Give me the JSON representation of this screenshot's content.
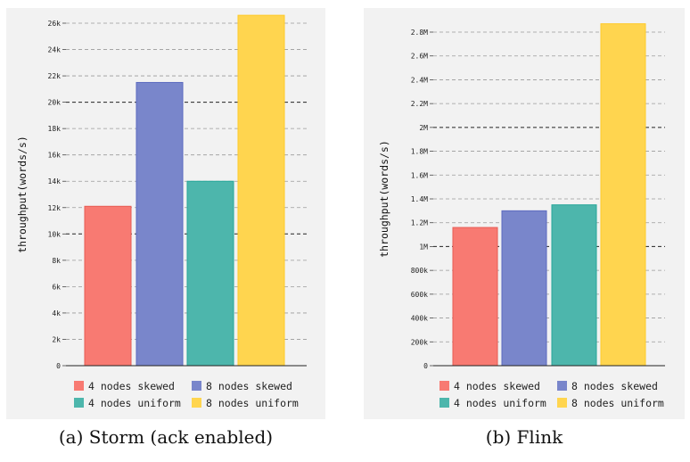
{
  "figure": {
    "captions": [
      "(a) Storm (ack enabled)",
      "(b) Flink"
    ]
  },
  "chart_data": [
    {
      "type": "bar",
      "title": "",
      "xlabel": "",
      "ylabel": "throughput(words/s)",
      "ylim": [
        0,
        26000
      ],
      "yticks": [
        0,
        2000,
        4000,
        6000,
        8000,
        10000,
        12000,
        14000,
        16000,
        18000,
        20000,
        22000,
        24000,
        26000
      ],
      "ytick_labels": [
        "0",
        "2k",
        "4k",
        "6k",
        "8k",
        "10k",
        "12k",
        "14k",
        "16k",
        "18k",
        "20k",
        "22k",
        "24k",
        "26k"
      ],
      "dark_gridlines": [
        10000,
        20000
      ],
      "grid": true,
      "legend_position": "bottom",
      "categories": [
        "4 nodes skewed",
        "8 nodes skewed",
        "4 nodes uniform",
        "8 nodes uniform"
      ],
      "values": [
        12100,
        21500,
        14000,
        26600
      ],
      "colors": [
        "#f87a72",
        "#7986cb",
        "#4db6ac",
        "#ffd54f"
      ],
      "border_colors": [
        "#e85c54",
        "#5c6bc0",
        "#26a69a",
        "#ffca28"
      ]
    },
    {
      "type": "bar",
      "title": "",
      "xlabel": "",
      "ylabel": "throughput(words/s)",
      "ylim": [
        0,
        2800000
      ],
      "yticks": [
        0,
        200000,
        400000,
        600000,
        800000,
        1000000,
        1200000,
        1400000,
        1600000,
        1800000,
        2000000,
        2200000,
        2400000,
        2600000,
        2800000
      ],
      "ytick_labels": [
        "0",
        "200k",
        "400k",
        "600k",
        "800k",
        "1M",
        "1.2M",
        "1.4M",
        "1.6M",
        "1.8M",
        "2M",
        "2.2M",
        "2.4M",
        "2.6M",
        "2.8M"
      ],
      "dark_gridlines": [
        1000000,
        2000000
      ],
      "grid": true,
      "legend_position": "bottom",
      "categories": [
        "4 nodes skewed",
        "8 nodes skewed",
        "4 nodes uniform",
        "8 nodes uniform"
      ],
      "values": [
        1160000,
        1300000,
        1350000,
        2870000
      ],
      "colors": [
        "#f87a72",
        "#7986cb",
        "#4db6ac",
        "#ffd54f"
      ],
      "border_colors": [
        "#e85c54",
        "#5c6bc0",
        "#26a69a",
        "#ffca28"
      ]
    }
  ]
}
